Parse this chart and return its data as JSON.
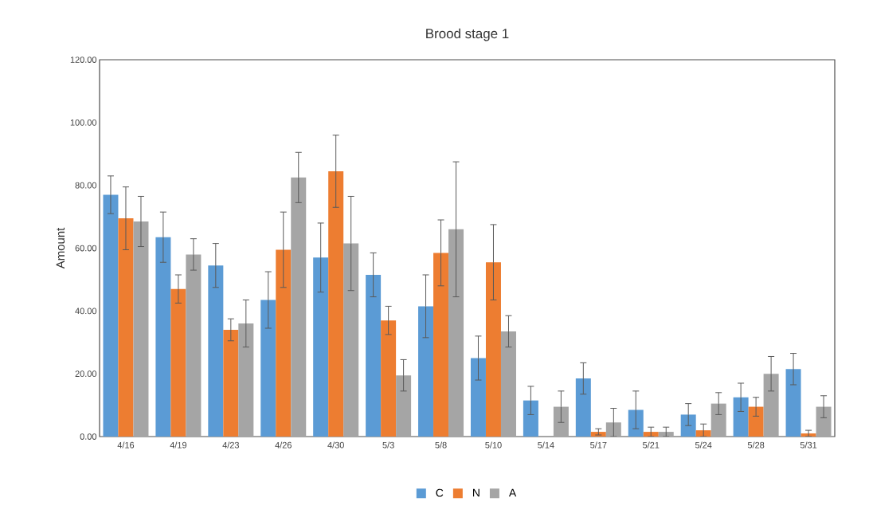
{
  "chart_data": {
    "type": "bar",
    "title": "Brood stage 1",
    "ylabel": "Amount",
    "categories": [
      "4/16",
      "4/19",
      "4/23",
      "4/26",
      "4/30",
      "5/3",
      "5/8",
      "5/10",
      "5/14",
      "5/17",
      "5/21",
      "5/24",
      "5/28",
      "5/31"
    ],
    "series": [
      {
        "name": "C",
        "color": "#5b9bd5",
        "values": [
          77,
          63.5,
          54.5,
          43.5,
          57,
          51.5,
          41.5,
          25,
          11.5,
          18.5,
          8.5,
          7,
          12.5,
          21.5
        ],
        "errors": [
          6,
          8,
          7,
          9,
          11,
          7,
          10,
          7,
          4.5,
          5,
          6,
          3.5,
          4.5,
          5
        ]
      },
      {
        "name": "N",
        "color": "#ed7d31",
        "values": [
          69.5,
          47,
          34,
          59.5,
          84.5,
          37,
          58.5,
          55.5,
          null,
          1.5,
          1.5,
          2,
          9.5,
          1
        ],
        "errors": [
          10,
          4.5,
          3.5,
          12,
          11.5,
          4.5,
          10.5,
          12,
          null,
          1,
          1.5,
          2,
          3,
          1
        ]
      },
      {
        "name": "A",
        "color": "#a5a5a5",
        "values": [
          68.5,
          58,
          36,
          82.5,
          61.5,
          19.5,
          66,
          33.5,
          9.5,
          4.5,
          1.5,
          10.5,
          20,
          9.5
        ],
        "errors": [
          8,
          5,
          7.5,
          8,
          15,
          5,
          21.5,
          5,
          5,
          4.5,
          1.5,
          3.5,
          5.5,
          3.5
        ]
      }
    ],
    "ylim": [
      0,
      120
    ],
    "yticks": [
      {
        "value": 0,
        "label": "0.00"
      },
      {
        "value": 20,
        "label": "20.00"
      },
      {
        "value": 40,
        "label": "40.00"
      },
      {
        "value": 60,
        "label": "60.00"
      },
      {
        "value": 80,
        "label": "80.00"
      },
      {
        "value": 100,
        "label": "100.00"
      },
      {
        "value": 120,
        "label": "120.00"
      }
    ],
    "legend": "bottom"
  }
}
